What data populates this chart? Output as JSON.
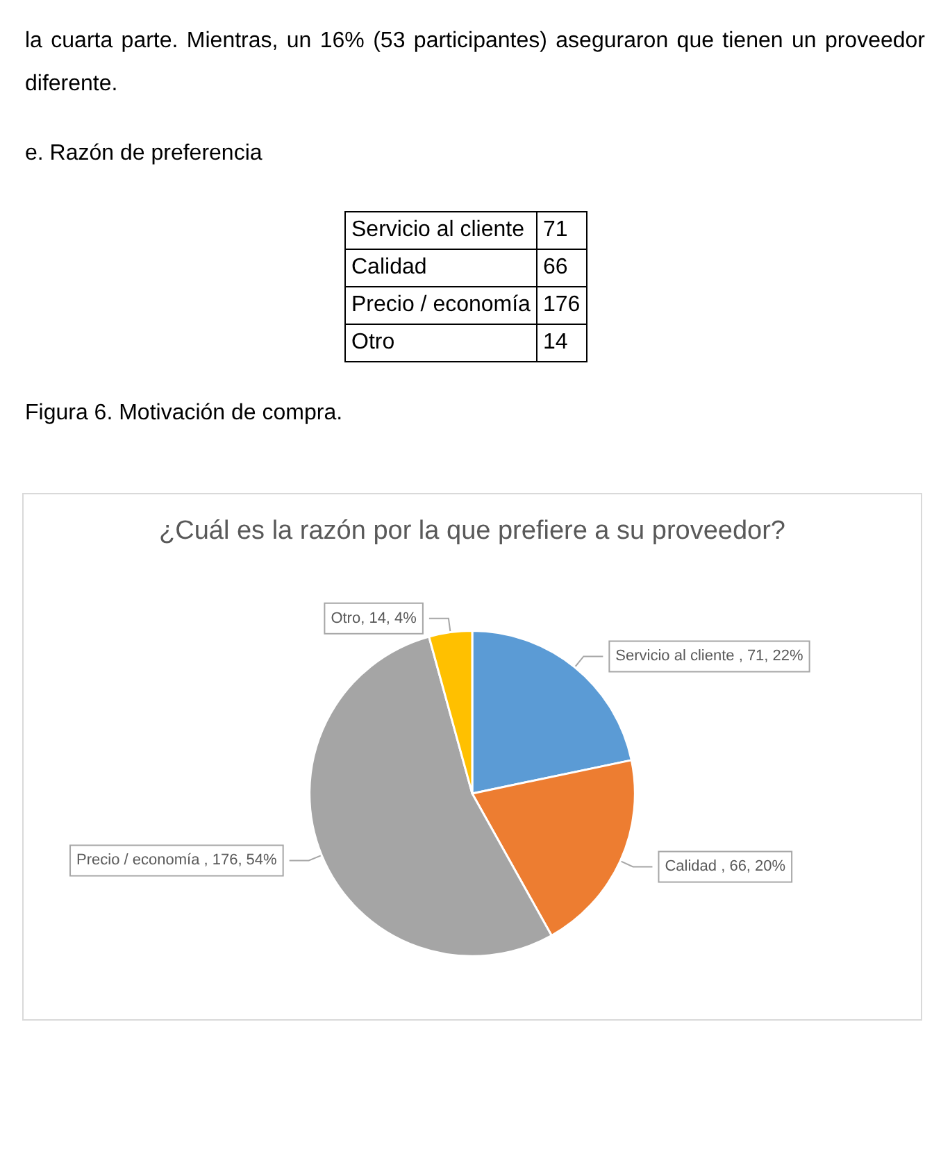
{
  "chart_data": {
    "type": "pie",
    "title": "¿Cuál es la razón por la que prefiere a su proveedor?",
    "categories": [
      "Servicio al cliente",
      "Calidad",
      "Precio / economía",
      "Otro"
    ],
    "values": [
      71,
      66,
      176,
      14
    ],
    "colors": [
      "#5b9bd5",
      "#ed7d31",
      "#a5a5a5",
      "#ffc000"
    ],
    "value_labels": [
      " , 71, 22%",
      " , 66, 20%",
      " , 176, 54%",
      ", 14, 4%"
    ],
    "legend": false,
    "annotations": [
      "la cuarta parte. Mientras, un 16% (53 participantes) aseguraron que tienen un proveedor diferente.",
      "e. Razón de preferencia",
      "71",
      "66",
      "176",
      "14",
      "Figura 6. Motivación de compra."
    ]
  }
}
